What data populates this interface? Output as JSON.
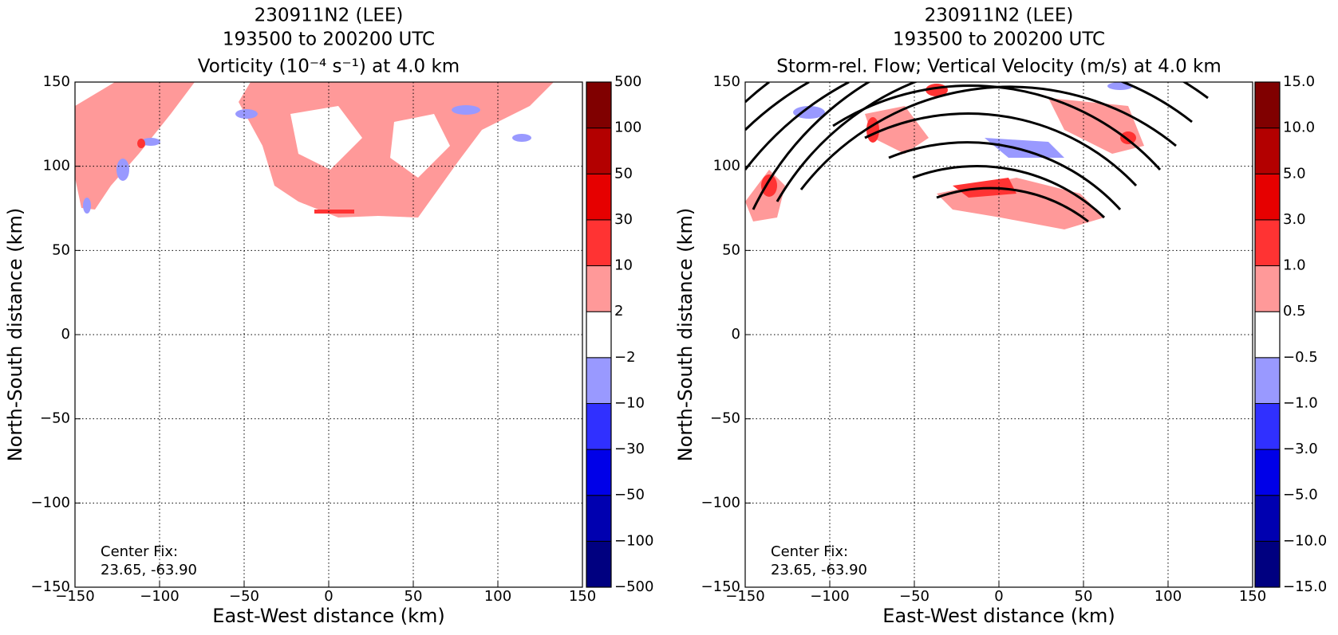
{
  "chart_data": [
    {
      "type": "contour",
      "title": [
        "230911N2 (LEE)",
        "193500 to 200200 UTC",
        "Vorticity (10⁻⁴ s⁻¹) at 4.0 km"
      ],
      "x_label": "East-West distance (km)",
      "y_label": "North-South distance (km)",
      "xlim": [
        -150,
        150
      ],
      "ylim": [
        -150,
        150
      ],
      "xticks": [
        {
          "value": -150,
          "label": "−150"
        },
        {
          "value": -100,
          "label": "−100"
        },
        {
          "value": -50,
          "label": "−50"
        },
        0,
        50,
        100,
        150
      ],
      "yticks": [
        {
          "value": -150,
          "label": "−150"
        },
        {
          "value": -100,
          "label": "−100"
        },
        {
          "value": -50,
          "label": "−50"
        },
        0,
        50,
        100,
        150
      ],
      "grid": true,
      "annotation": [
        "Center Fix:",
        "23.65, -63.90"
      ],
      "colorbar": {
        "levels": [
          {
            "value": -500,
            "label": "−500"
          },
          {
            "value": -100,
            "label": "−100"
          },
          {
            "value": -50,
            "label": "−50"
          },
          {
            "value": -30,
            "label": "−30"
          },
          {
            "value": -10,
            "label": "−10"
          },
          {
            "value": -2,
            "label": "−2"
          },
          2,
          10,
          30,
          50,
          100,
          500
        ],
        "colors": [
          "#000080",
          "#0000b0",
          "#0000e8",
          "#3030ff",
          "#9999ff",
          "#ffffff",
          "#ff9999",
          "#ff3333",
          "#e60000",
          "#b30000",
          "#800000"
        ]
      }
    },
    {
      "type": "contour",
      "title": [
        "230911N2 (LEE)",
        "193500 to 200200 UTC",
        "Storm-rel. Flow; Vertical Velocity (m/s) at 4.0 km"
      ],
      "x_label": "East-West distance (km)",
      "y_label": "North-South distance (km)",
      "xlim": [
        -150,
        150
      ],
      "ylim": [
        -150,
        150
      ],
      "xticks": [
        {
          "value": -150,
          "label": "−150"
        },
        {
          "value": -100,
          "label": "−100"
        },
        {
          "value": -50,
          "label": "−50"
        },
        0,
        50,
        100,
        150
      ],
      "yticks": [
        {
          "value": -150,
          "label": "−150"
        },
        {
          "value": -100,
          "label": "−100"
        },
        {
          "value": -50,
          "label": "−50"
        },
        0,
        50,
        100,
        150
      ],
      "grid": true,
      "annotation": [
        "Center Fix:",
        "23.65, -63.90"
      ],
      "colorbar": {
        "levels": [
          {
            "value": -15,
            "label": "−15.0"
          },
          {
            "value": -10,
            "label": "−10.0"
          },
          {
            "value": -5,
            "label": "−5.0"
          },
          {
            "value": -3,
            "label": "−3.0"
          },
          {
            "value": -1,
            "label": "−1.0"
          },
          {
            "value": -0.5,
            "label": "−0.5"
          },
          {
            "value": 0.5,
            "label": "0.5"
          },
          {
            "value": 1,
            "label": "1.0"
          },
          {
            "value": 3,
            "label": "3.0"
          },
          {
            "value": 5,
            "label": "5.0"
          },
          {
            "value": 10,
            "label": "10.0"
          },
          {
            "value": 15,
            "label": "15.0"
          }
        ],
        "colors": [
          "#000080",
          "#0000b0",
          "#0000e8",
          "#3030ff",
          "#9999ff",
          "#ffffff",
          "#ff9999",
          "#ff3333",
          "#e60000",
          "#b30000",
          "#800000"
        ]
      }
    }
  ]
}
